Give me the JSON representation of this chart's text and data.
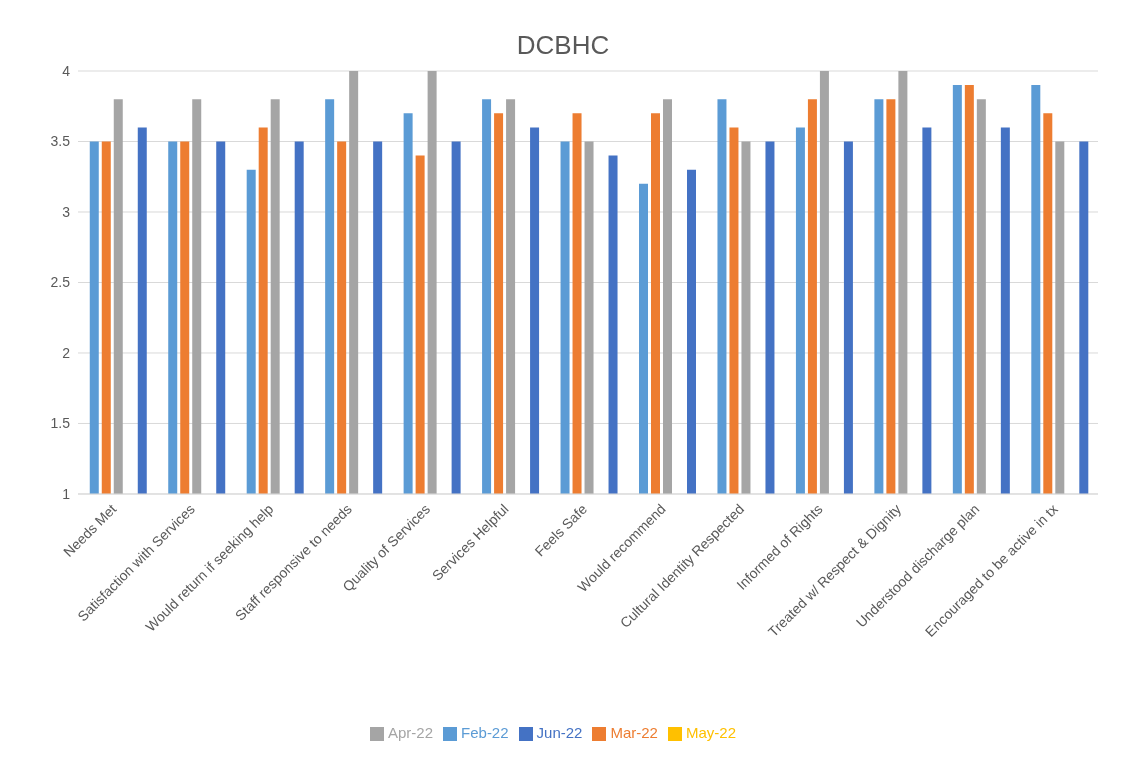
{
  "chart_data": {
    "type": "bar",
    "title": "DCBHC",
    "categories": [
      "Needs Met",
      "Satisfaction with Services",
      "Would return if seeking help",
      "Staff responsive to needs",
      "Quality of Services",
      "Services Helpful",
      "Feels Safe",
      "Would recommend",
      "Cultural Identity Respected",
      "Informed of Rights",
      "Treated w/ Respect & Dignity",
      "Understood discharge plan",
      "Encouraged to be active in tx"
    ],
    "series": [
      {
        "name": "Feb-22",
        "color": "#5b9bd5",
        "values": [
          3.5,
          3.5,
          3.3,
          3.8,
          3.7,
          3.8,
          3.5,
          3.2,
          3.8,
          3.6,
          3.8,
          3.9,
          3.9
        ]
      },
      {
        "name": "Mar-22",
        "color": "#ed7d31",
        "values": [
          3.5,
          3.5,
          3.6,
          3.5,
          3.4,
          3.7,
          3.7,
          3.7,
          3.6,
          3.8,
          3.8,
          3.9,
          3.7
        ]
      },
      {
        "name": "Apr-22",
        "color": "#a5a5a5",
        "values": [
          3.8,
          3.8,
          3.8,
          4,
          4,
          3.8,
          3.5,
          3.8,
          3.5,
          4,
          4,
          3.8,
          3.5
        ]
      },
      {
        "name": "May-22",
        "color": "#ffc000",
        "values": [
          1,
          1,
          1,
          1,
          1,
          1,
          1,
          1,
          1,
          1,
          1,
          1,
          1
        ]
      },
      {
        "name": "Jun-22",
        "color": "#4472c4",
        "values": [
          3.6,
          3.5,
          3.5,
          3.5,
          3.5,
          3.6,
          3.4,
          3.3,
          3.5,
          3.5,
          3.6,
          3.6,
          3.5
        ]
      }
    ],
    "ylim": [
      1,
      4
    ],
    "yticks": [
      1,
      1.5,
      2,
      2.5,
      3,
      3.5,
      4
    ],
    "grid": "y",
    "legend": "bottom"
  }
}
